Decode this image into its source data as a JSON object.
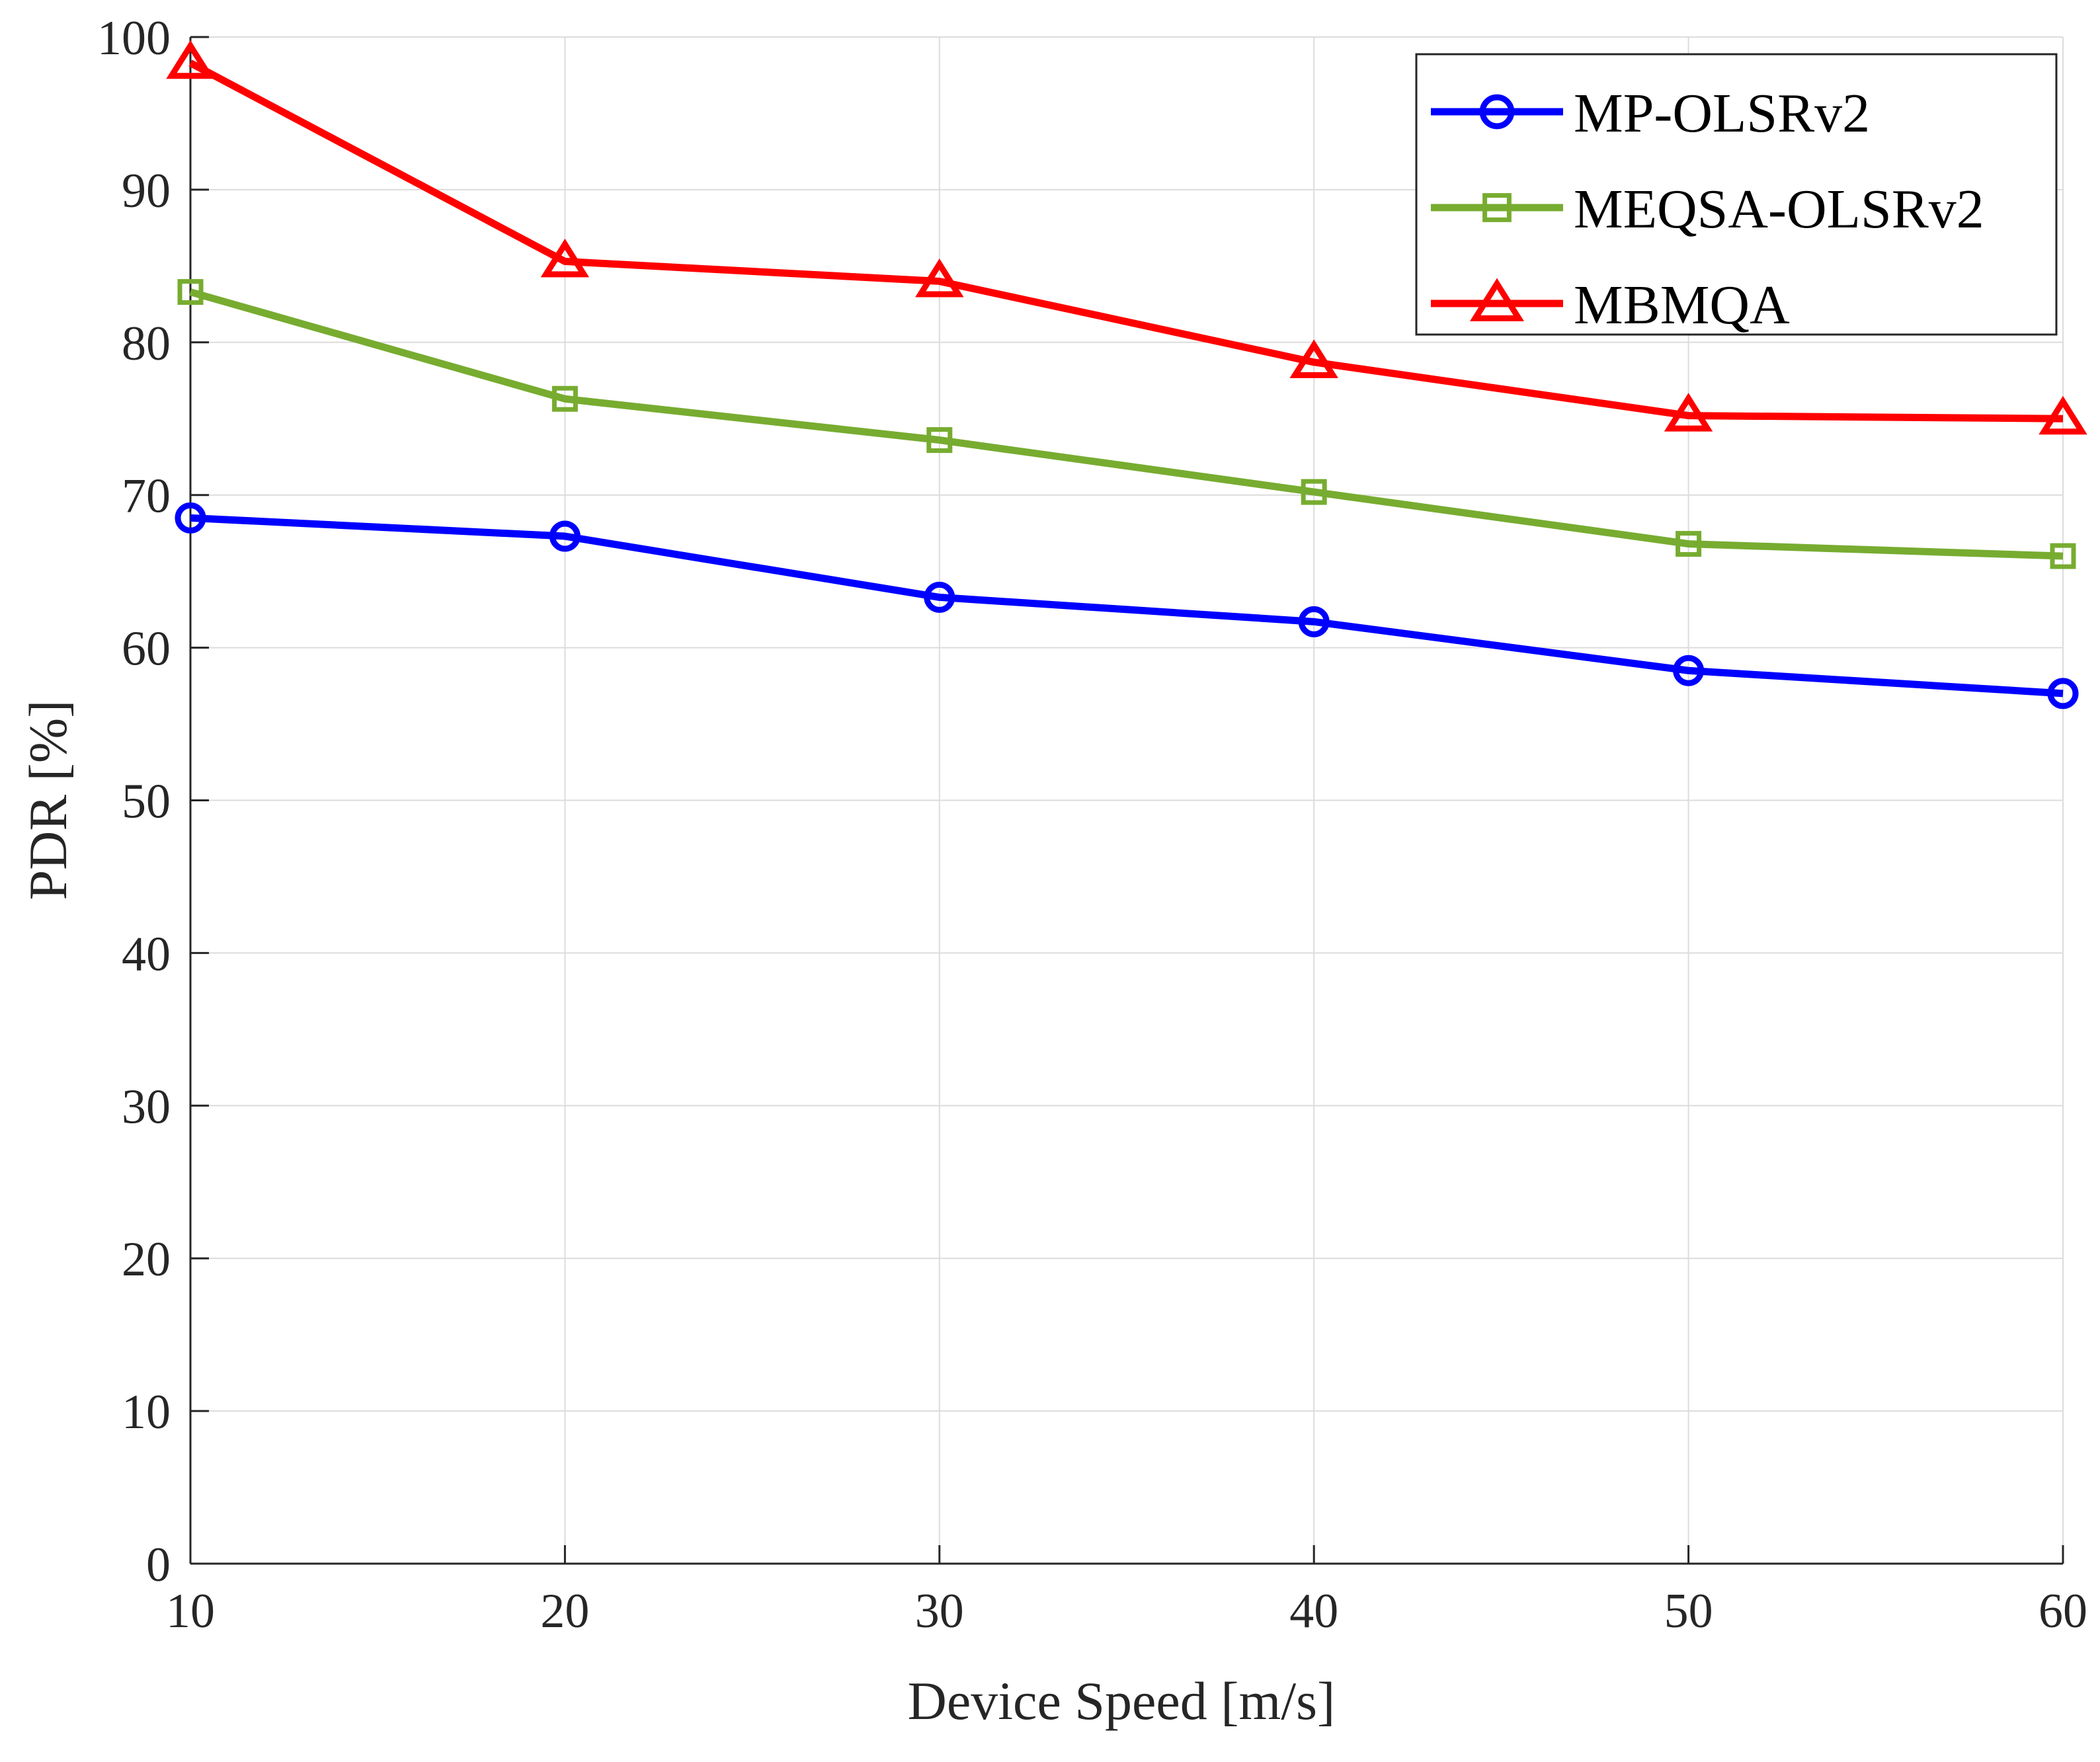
{
  "chart_data": {
    "type": "line",
    "title": "",
    "xlabel": "Device Speed [m/s]",
    "ylabel": "PDR [%]",
    "x": [
      10,
      20,
      30,
      40,
      50,
      60
    ],
    "xlim": [
      10,
      60
    ],
    "ylim": [
      0,
      100
    ],
    "xticks": [
      10,
      20,
      30,
      40,
      50,
      60
    ],
    "yticks": [
      0,
      10,
      20,
      30,
      40,
      50,
      60,
      70,
      80,
      90,
      100
    ],
    "grid": true,
    "legend_position": "top-right",
    "series": [
      {
        "name": "MP-OLSRv2",
        "marker": "circle",
        "color": "#0000FF",
        "values": [
          68.5,
          67.3,
          63.3,
          61.7,
          58.5,
          57.0
        ]
      },
      {
        "name": "MEQSA-OLSRv2",
        "marker": "square",
        "color": "#77AC30",
        "values": [
          83.3,
          76.3,
          73.6,
          70.2,
          66.8,
          66.0
        ]
      },
      {
        "name": "MBMQA",
        "marker": "triangle",
        "color": "#FF0000",
        "values": [
          98.3,
          85.3,
          84.0,
          78.7,
          75.2,
          75.0
        ]
      }
    ]
  }
}
